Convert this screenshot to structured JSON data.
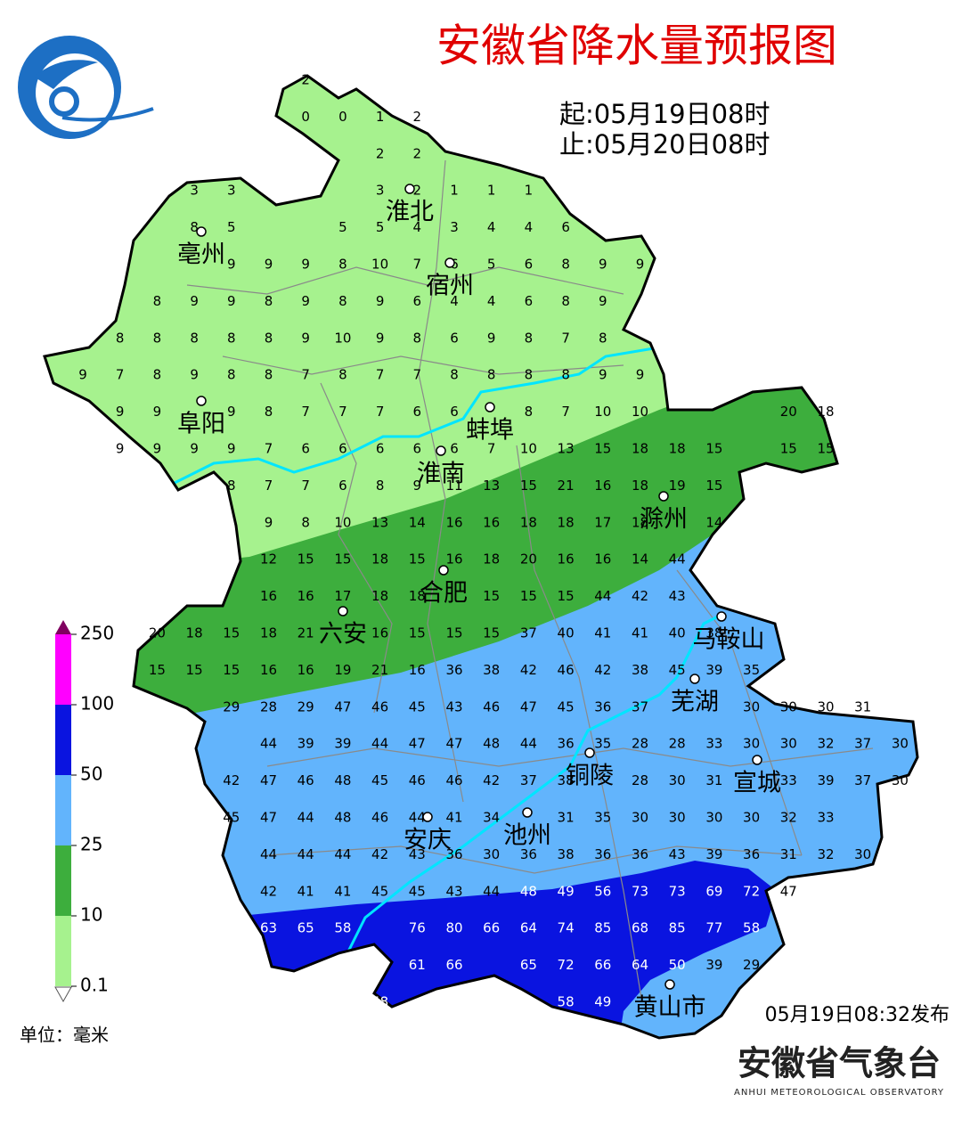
{
  "header": {
    "title": "安徽省降水量预报图",
    "start": "起:05月19日08时",
    "end": "止:05月20日08时"
  },
  "cities": [
    "淮北",
    "亳州",
    "宿州",
    "阜阳",
    "蚌埠",
    "淮南",
    "滁州",
    "合肥",
    "六安",
    "马鞍山",
    "芜湖",
    "铜陵",
    "宣城",
    "安庆",
    "池州",
    "黄山市"
  ],
  "grid": [
    [
      null,
      null,
      null,
      null,
      null,
      null,
      2,
      null,
      null,
      null,
      null,
      null,
      null,
      null,
      null,
      null,
      null,
      null,
      null,
      null,
      null,
      null,
      null
    ],
    [
      null,
      null,
      null,
      null,
      null,
      null,
      0,
      0,
      1,
      2,
      null,
      null,
      null,
      null,
      null,
      null,
      null,
      null,
      null,
      null,
      null,
      null,
      null
    ],
    [
      null,
      null,
      null,
      null,
      null,
      null,
      null,
      null,
      2,
      2,
      null,
      null,
      null,
      null,
      null,
      null,
      null,
      null,
      null,
      null,
      null,
      null,
      null
    ],
    [
      null,
      null,
      null,
      3,
      3,
      null,
      null,
      null,
      3,
      2,
      1,
      1,
      1,
      null,
      null,
      null,
      null,
      null,
      null,
      null,
      null,
      null,
      null
    ],
    [
      null,
      null,
      null,
      8,
      5,
      null,
      null,
      5,
      5,
      4,
      3,
      4,
      4,
      6,
      null,
      null,
      null,
      null,
      null,
      null,
      null,
      null,
      null
    ],
    [
      null,
      null,
      null,
      null,
      9,
      9,
      9,
      8,
      10,
      7,
      6,
      5,
      6,
      8,
      9,
      9,
      null,
      null,
      null,
      null,
      null,
      null,
      null
    ],
    [
      null,
      null,
      8,
      9,
      9,
      8,
      9,
      8,
      9,
      6,
      4,
      4,
      6,
      8,
      9,
      null,
      null,
      null,
      null,
      null,
      null,
      null,
      null
    ],
    [
      null,
      8,
      8,
      8,
      8,
      8,
      9,
      10,
      9,
      8,
      6,
      9,
      8,
      7,
      8,
      null,
      null,
      null,
      null,
      null,
      null,
      null,
      null
    ],
    [
      9,
      7,
      8,
      9,
      8,
      8,
      7,
      8,
      7,
      7,
      8,
      8,
      8,
      8,
      9,
      9,
      null,
      null,
      null,
      null,
      null,
      null,
      null
    ],
    [
      null,
      9,
      9,
      null,
      9,
      8,
      7,
      7,
      7,
      6,
      6,
      null,
      8,
      7,
      10,
      10,
      null,
      null,
      null,
      20,
      18,
      null,
      null
    ],
    [
      null,
      9,
      9,
      9,
      9,
      7,
      6,
      6,
      6,
      6,
      6,
      7,
      10,
      13,
      15,
      18,
      18,
      15,
      null,
      15,
      15,
      null,
      null
    ],
    [
      null,
      null,
      null,
      null,
      8,
      7,
      7,
      6,
      8,
      9,
      11,
      13,
      15,
      21,
      16,
      18,
      19,
      15,
      null,
      null,
      null,
      null,
      null
    ],
    [
      null,
      null,
      null,
      null,
      null,
      9,
      8,
      10,
      13,
      14,
      16,
      16,
      18,
      18,
      17,
      18,
      null,
      14,
      null,
      null,
      null,
      null,
      null
    ],
    [
      null,
      null,
      null,
      null,
      null,
      12,
      15,
      15,
      18,
      15,
      16,
      18,
      20,
      16,
      16,
      14,
      44,
      null,
      null,
      null,
      null,
      null,
      null
    ],
    [
      null,
      null,
      null,
      null,
      null,
      16,
      16,
      17,
      18,
      18,
      null,
      15,
      15,
      15,
      44,
      42,
      43,
      null,
      null,
      null,
      null,
      null,
      null
    ],
    [
      null,
      null,
      20,
      18,
      15,
      18,
      21,
      null,
      16,
      15,
      15,
      15,
      37,
      40,
      41,
      41,
      40,
      38,
      null,
      null,
      null,
      null,
      null
    ],
    [
      null,
      null,
      15,
      15,
      15,
      16,
      16,
      19,
      21,
      16,
      36,
      38,
      42,
      46,
      42,
      38,
      45,
      39,
      35,
      null,
      null,
      null,
      null
    ],
    [
      null,
      null,
      null,
      null,
      29,
      28,
      29,
      47,
      46,
      45,
      43,
      46,
      47,
      45,
      36,
      37,
      null,
      null,
      30,
      30,
      30,
      31,
      null
    ],
    [
      null,
      null,
      null,
      null,
      null,
      44,
      39,
      39,
      44,
      47,
      47,
      48,
      44,
      36,
      35,
      28,
      28,
      33,
      30,
      30,
      32,
      37,
      30
    ],
    [
      null,
      null,
      null,
      null,
      42,
      47,
      46,
      48,
      45,
      46,
      46,
      42,
      37,
      38,
      null,
      28,
      30,
      31,
      null,
      33,
      39,
      37,
      30
    ],
    [
      null,
      null,
      null,
      null,
      45,
      47,
      44,
      48,
      46,
      44,
      41,
      34,
      null,
      31,
      35,
      30,
      30,
      30,
      30,
      32,
      33,
      null,
      null
    ],
    [
      null,
      null,
      null,
      null,
      null,
      44,
      44,
      44,
      42,
      43,
      36,
      30,
      36,
      38,
      36,
      36,
      43,
      39,
      36,
      31,
      32,
      30,
      null
    ],
    [
      null,
      null,
      null,
      null,
      null,
      42,
      41,
      41,
      45,
      45,
      43,
      44,
      48,
      49,
      56,
      73,
      73,
      69,
      72,
      47,
      null,
      null,
      null
    ],
    [
      null,
      null,
      null,
      null,
      null,
      63,
      65,
      58,
      null,
      76,
      80,
      66,
      64,
      74,
      85,
      68,
      85,
      77,
      58,
      null,
      null,
      null,
      null
    ],
    [
      null,
      null,
      null,
      null,
      null,
      null,
      null,
      null,
      null,
      61,
      66,
      null,
      65,
      72,
      66,
      64,
      50,
      39,
      29,
      null,
      null,
      null,
      null
    ],
    [
      null,
      null,
      null,
      null,
      null,
      null,
      null,
      null,
      58,
      null,
      null,
      null,
      null,
      58,
      49,
      null,
      null,
      null,
      null,
      null,
      null,
      null,
      null
    ]
  ],
  "legend": {
    "labels": [
      250,
      100,
      50,
      25,
      10,
      0.1
    ],
    "colors": [
      "#ff00ff",
      "#0a14e0",
      "#62b4fc",
      "#3dae3d",
      "#a6f28e"
    ],
    "unit": "单位：毫米"
  },
  "footer": {
    "published": "05月19日08:32发布",
    "org": "安徽省气象台",
    "org_en": "ANHUI METEOROLOGICAL OBSERVATORY"
  }
}
